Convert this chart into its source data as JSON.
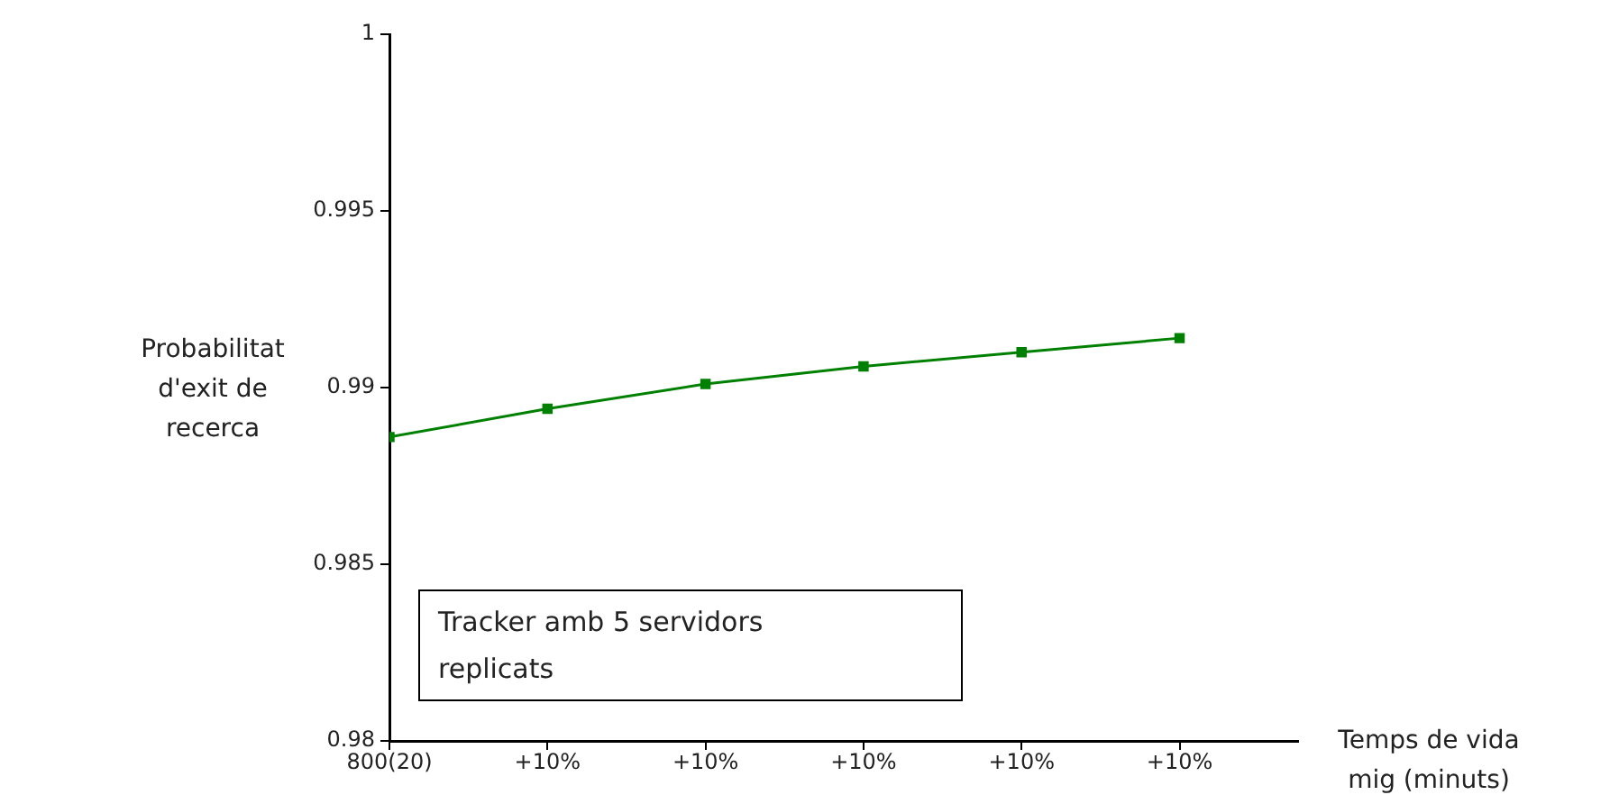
{
  "chart_data": {
    "type": "line",
    "xlabel": "Temps de vida mig (minuts)",
    "ylabel": "Probabilitat d'exit de recerca",
    "categories": [
      "800(20)",
      "+10%",
      "+10%",
      "+10%",
      "+10%",
      "+10%"
    ],
    "series": [
      {
        "color": "#008000",
        "values": [
          0.9886,
          0.9894,
          0.9901,
          0.9906,
          0.991,
          0.9914
        ]
      }
    ],
    "ylim": [
      0.98,
      1
    ],
    "yticks": [
      0.98,
      0.985,
      0.99,
      0.995,
      1
    ],
    "grid": false,
    "legend": false,
    "marker": "square",
    "line_style": "solid",
    "annotations": [
      "Tracker amb 5 servidors replicats"
    ]
  }
}
